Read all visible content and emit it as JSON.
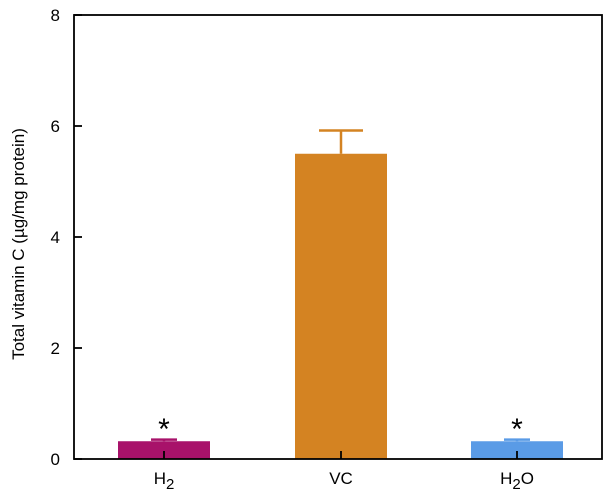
{
  "chart_data": {
    "type": "bar",
    "ylabel": "Total vitamin C (µg/mg protein)",
    "ylim": [
      0,
      8
    ],
    "yticks": [
      "0",
      "2",
      "4",
      "6",
      "8"
    ],
    "categories": [
      {
        "base": "H",
        "sub": "2",
        "after": ""
      },
      {
        "base": "VC",
        "sub": "",
        "after": ""
      },
      {
        "base": "H",
        "sub": "2",
        "after": "O"
      }
    ],
    "values": [
      0.32,
      5.5,
      0.32
    ],
    "errors": [
      0.03,
      0.42,
      0.03
    ],
    "colors": [
      "#a8126a",
      "#d48322",
      "#5a9be6"
    ],
    "significance": [
      "*",
      "",
      "*"
    ],
    "grid": false
  }
}
